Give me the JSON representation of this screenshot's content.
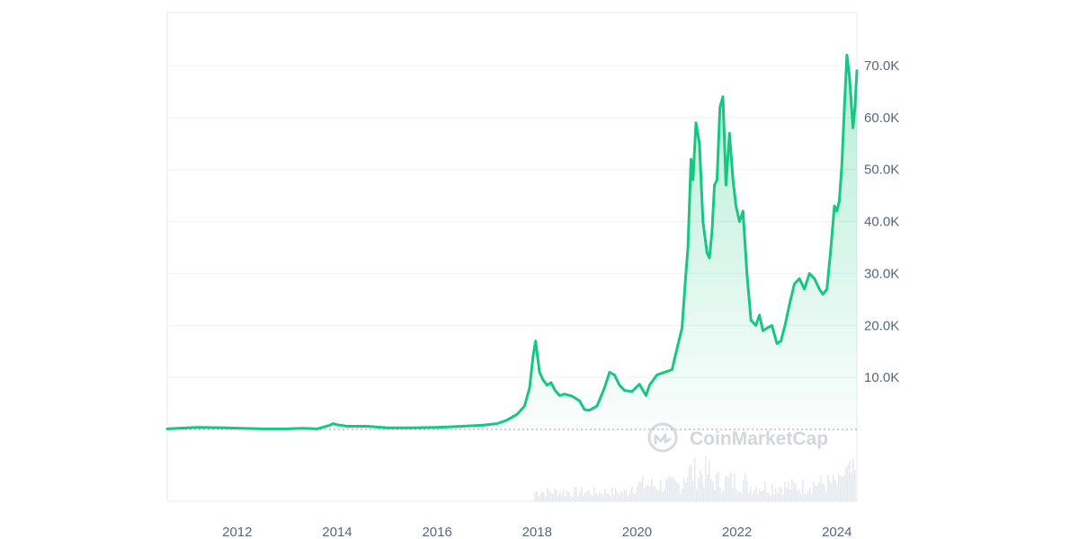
{
  "chart_data": {
    "type": "area",
    "series": [
      {
        "x": [
          2010.6,
          2011.2,
          2011.8,
          2012.5,
          2013.0,
          2013.3,
          2013.6,
          2013.85,
          2013.92,
          2014.0,
          2014.2,
          2014.6,
          2015.0,
          2015.5,
          2016.0,
          2016.5,
          2016.9,
          2017.2,
          2017.4,
          2017.6,
          2017.75,
          2017.85,
          2017.92,
          2017.97,
          2018.05,
          2018.12,
          2018.2,
          2018.28,
          2018.36,
          2018.45,
          2018.55,
          2018.7,
          2018.85,
          2018.95,
          2019.05,
          2019.2,
          2019.35,
          2019.45,
          2019.55,
          2019.65,
          2019.75,
          2019.9,
          2020.05,
          2020.18,
          2020.25,
          2020.4,
          2020.55,
          2020.7,
          2020.8,
          2020.9,
          2020.97,
          2021.02,
          2021.08,
          2021.12,
          2021.18,
          2021.25,
          2021.32,
          2021.4,
          2021.45,
          2021.5,
          2021.55,
          2021.6,
          2021.66,
          2021.72,
          2021.78,
          2021.85,
          2021.92,
          2021.98,
          2022.05,
          2022.12,
          2022.2,
          2022.28,
          2022.38,
          2022.45,
          2022.52,
          2022.6,
          2022.7,
          2022.8,
          2022.88,
          2022.96,
          2023.05,
          2023.15,
          2023.25,
          2023.35,
          2023.45,
          2023.55,
          2023.65,
          2023.72,
          2023.8,
          2023.88,
          2023.95,
          2024.0,
          2024.05,
          2024.1,
          2024.15,
          2024.2,
          2024.25,
          2024.28,
          2024.32,
          2024.36,
          2024.4
        ],
        "y": [
          0.1,
          0.4,
          0.3,
          0.1,
          0.1,
          0.2,
          0.1,
          0.8,
          1.1,
          0.9,
          0.6,
          0.6,
          0.3,
          0.3,
          0.4,
          0.6,
          0.8,
          1.1,
          1.8,
          2.9,
          4.5,
          8.0,
          14.0,
          17.0,
          11.0,
          9.5,
          8.5,
          9.0,
          7.5,
          6.5,
          6.8,
          6.4,
          5.5,
          3.8,
          3.7,
          4.5,
          8.0,
          11.0,
          10.5,
          8.5,
          7.5,
          7.3,
          8.7,
          6.5,
          8.5,
          10.5,
          11.0,
          11.5,
          15.5,
          19.5,
          29.0,
          35.0,
          52.0,
          48.0,
          59.0,
          55.0,
          40.0,
          34.0,
          33.0,
          38.0,
          47.0,
          48.0,
          62.0,
          64.0,
          47.0,
          57.0,
          48.0,
          43.0,
          40.0,
          42.0,
          30.0,
          21.0,
          20.0,
          22.0,
          19.0,
          19.5,
          20.0,
          16.5,
          17.0,
          20.0,
          24.0,
          28.0,
          29.0,
          27.0,
          30.0,
          29.0,
          27.0,
          26.0,
          27.0,
          35.0,
          43.0,
          42.0,
          44.0,
          51.0,
          62.0,
          72.0,
          68.0,
          64.0,
          58.0,
          62.0,
          69.0
        ]
      }
    ],
    "x_ticks": [
      2012,
      2014,
      2016,
      2018,
      2020,
      2022,
      2024
    ],
    "x_tick_labels": [
      "2012",
      "2014",
      "2016",
      "2018",
      "2020",
      "2022",
      "2024"
    ],
    "y_ticks": [
      10,
      20,
      30,
      40,
      50,
      60,
      70
    ],
    "y_tick_labels": [
      "10.0K",
      "20.0K",
      "30.0K",
      "40.0K",
      "50.0K",
      "60.0K",
      "70.0K"
    ],
    "xlim": [
      2010.6,
      2024.4
    ],
    "ylim": [
      0,
      80
    ],
    "grid": "horizontal",
    "line_color": "#16c784",
    "fill_color": "#16c784",
    "baseline_color": "#9aa3ad",
    "volume_color": "#e6e9ee",
    "watermark": "CoinMarketCap"
  }
}
